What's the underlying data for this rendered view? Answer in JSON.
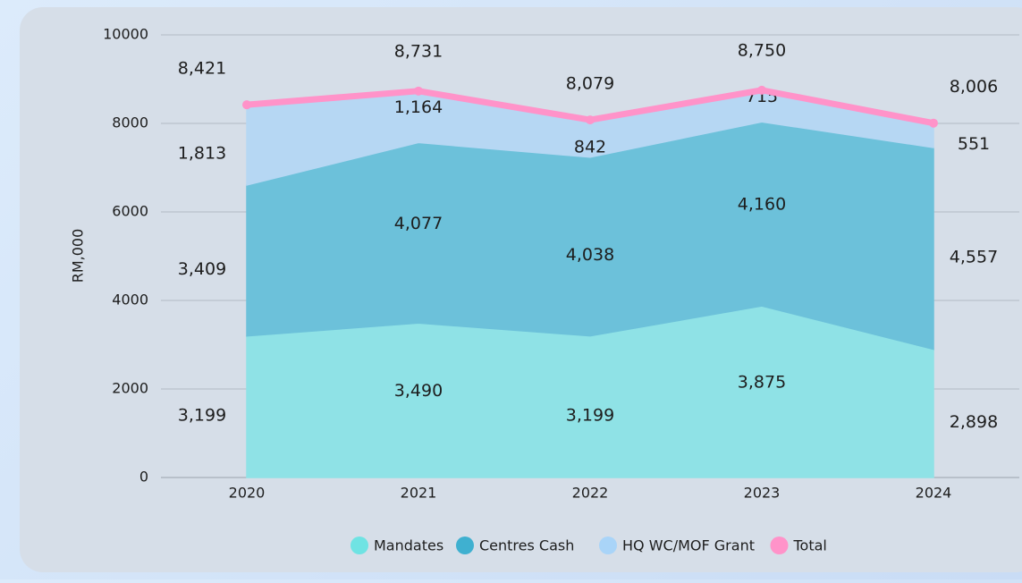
{
  "chart_data": {
    "type": "area",
    "stacked": true,
    "y_label": "RM,000",
    "categories": [
      "2020",
      "2021",
      "2022",
      "2023",
      "2024"
    ],
    "ylim": [
      0,
      10000
    ],
    "yticks": [
      0,
      2000,
      4000,
      6000,
      8000,
      10000
    ],
    "grid": true,
    "legend": "bottom",
    "series": [
      {
        "name": "Mandates",
        "color": "#8fe2e6",
        "legend_color": "#6fe3e3",
        "values": [
          3199,
          3490,
          3199,
          3875,
          2898
        ],
        "value_labels": [
          "3,199",
          "3,490",
          "3,199",
          "3,875",
          "2,898"
        ]
      },
      {
        "name": "Centres Cash",
        "color": "#6cc1da",
        "legend_color": "#3fb0d0",
        "values": [
          3409,
          4077,
          4038,
          4160,
          4557
        ],
        "value_labels": [
          "3,409",
          "4,077",
          "4,038",
          "4,160",
          "4,557"
        ]
      },
      {
        "name": "HQ WC/MOF Grant",
        "color": "#b6d7f3",
        "legend_color": "#a9d4f8",
        "values": [
          1813,
          1164,
          842,
          715,
          551
        ],
        "value_labels": [
          "1,813",
          "1,164",
          "842",
          "715",
          "551"
        ]
      },
      {
        "name": "Total",
        "type": "line",
        "color": "#ff93c9",
        "values": [
          8421,
          8731,
          8079,
          8750,
          8006
        ],
        "value_labels": [
          "8,421",
          "8,731",
          "8,079",
          "8,750",
          "8,006"
        ]
      }
    ]
  }
}
